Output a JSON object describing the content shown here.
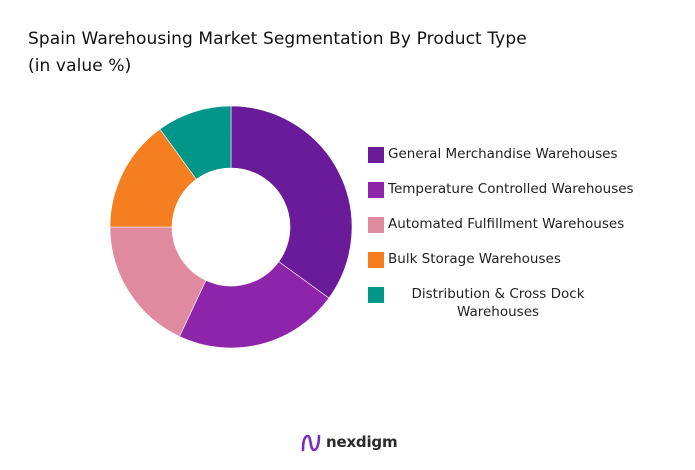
{
  "chart_data": {
    "type": "pie",
    "variant": "donut",
    "title": "Spain Warehousing Market Segmentation By Product Type",
    "subtitle": "(in value %)",
    "categories": [
      "General Merchandise Warehouses",
      "Temperature Controlled Warehouses",
      "Automated Fulfillment Warehouses",
      "Bulk Storage Warehouses",
      "Distribution & Cross Dock Warehouses"
    ],
    "values": [
      35,
      22,
      18,
      15,
      10
    ],
    "colors": [
      "#6a1b9a",
      "#8e24aa",
      "#e08aa0",
      "#f57f20",
      "#00968a"
    ],
    "legend_position": "right"
  },
  "legend": {
    "items": [
      {
        "label": "General Merchandise Warehouses",
        "color": "#6a1b9a"
      },
      {
        "label": "Temperature Controlled Warehouses",
        "color": "#8e24aa"
      },
      {
        "label": "Automated Fulfillment Warehouses",
        "color": "#e08aa0"
      },
      {
        "label": "Bulk Storage Warehouses",
        "color": "#f57f20"
      },
      {
        "label": "Distribution & Cross Dock Warehouses",
        "color": "#00968a"
      }
    ]
  },
  "branding": {
    "logo_text": "nexdigm",
    "logo_icon": "nexdigm-logo-icon",
    "logo_color": "#7b2cbf"
  }
}
